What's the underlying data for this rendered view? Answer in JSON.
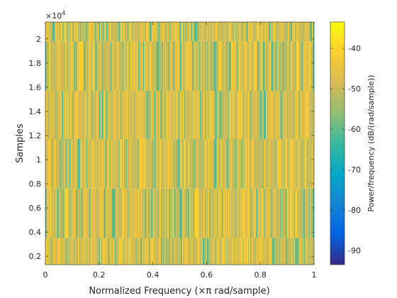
{
  "chart_data": {
    "type": "heatmap",
    "xlabel": "Normalized Frequency  (×π rad/sample)",
    "ylabel": "Samples",
    "y_exponent_label": "×10",
    "y_exponent_power": "4",
    "colorbar_label": "Power/frequency (dB/(rad/sample))",
    "xlim": [
      0,
      1
    ],
    "ylim": [
      1300,
      21400
    ],
    "x_ticks": [
      0,
      0.2,
      0.4,
      0.6,
      0.8,
      1
    ],
    "x_tick_labels": [
      "0",
      "0.2",
      "0.4",
      "0.6",
      "0.8",
      "1"
    ],
    "y_ticks": [
      2000,
      4000,
      6000,
      8000,
      10000,
      12000,
      14000,
      16000,
      18000,
      20000
    ],
    "y_tick_labels": [
      "0.2",
      "0.4",
      "0.6",
      "0.8",
      "1",
      "1.2",
      "1.4",
      "1.6",
      "1.8",
      "2"
    ],
    "clim": [
      -93.5,
      -33.5
    ],
    "colorbar_ticks": [
      -40,
      -50,
      -60,
      -70,
      -80,
      -90
    ],
    "colorbar_tick_labels": [
      "-40",
      "-50",
      "-60",
      "-70",
      "-80",
      "-90"
    ],
    "colormap": "parula",
    "n_frequency_bins": 256,
    "time_bands": [
      {
        "start": 1300,
        "end": 3500
      },
      {
        "start": 3500,
        "end": 7600
      },
      {
        "start": 7600,
        "end": 11700
      },
      {
        "start": 11700,
        "end": 15700
      },
      {
        "start": 15700,
        "end": 19800
      },
      {
        "start": 19800,
        "end": 21400
      }
    ],
    "value_range_typical": [
      -60,
      -40
    ]
  }
}
